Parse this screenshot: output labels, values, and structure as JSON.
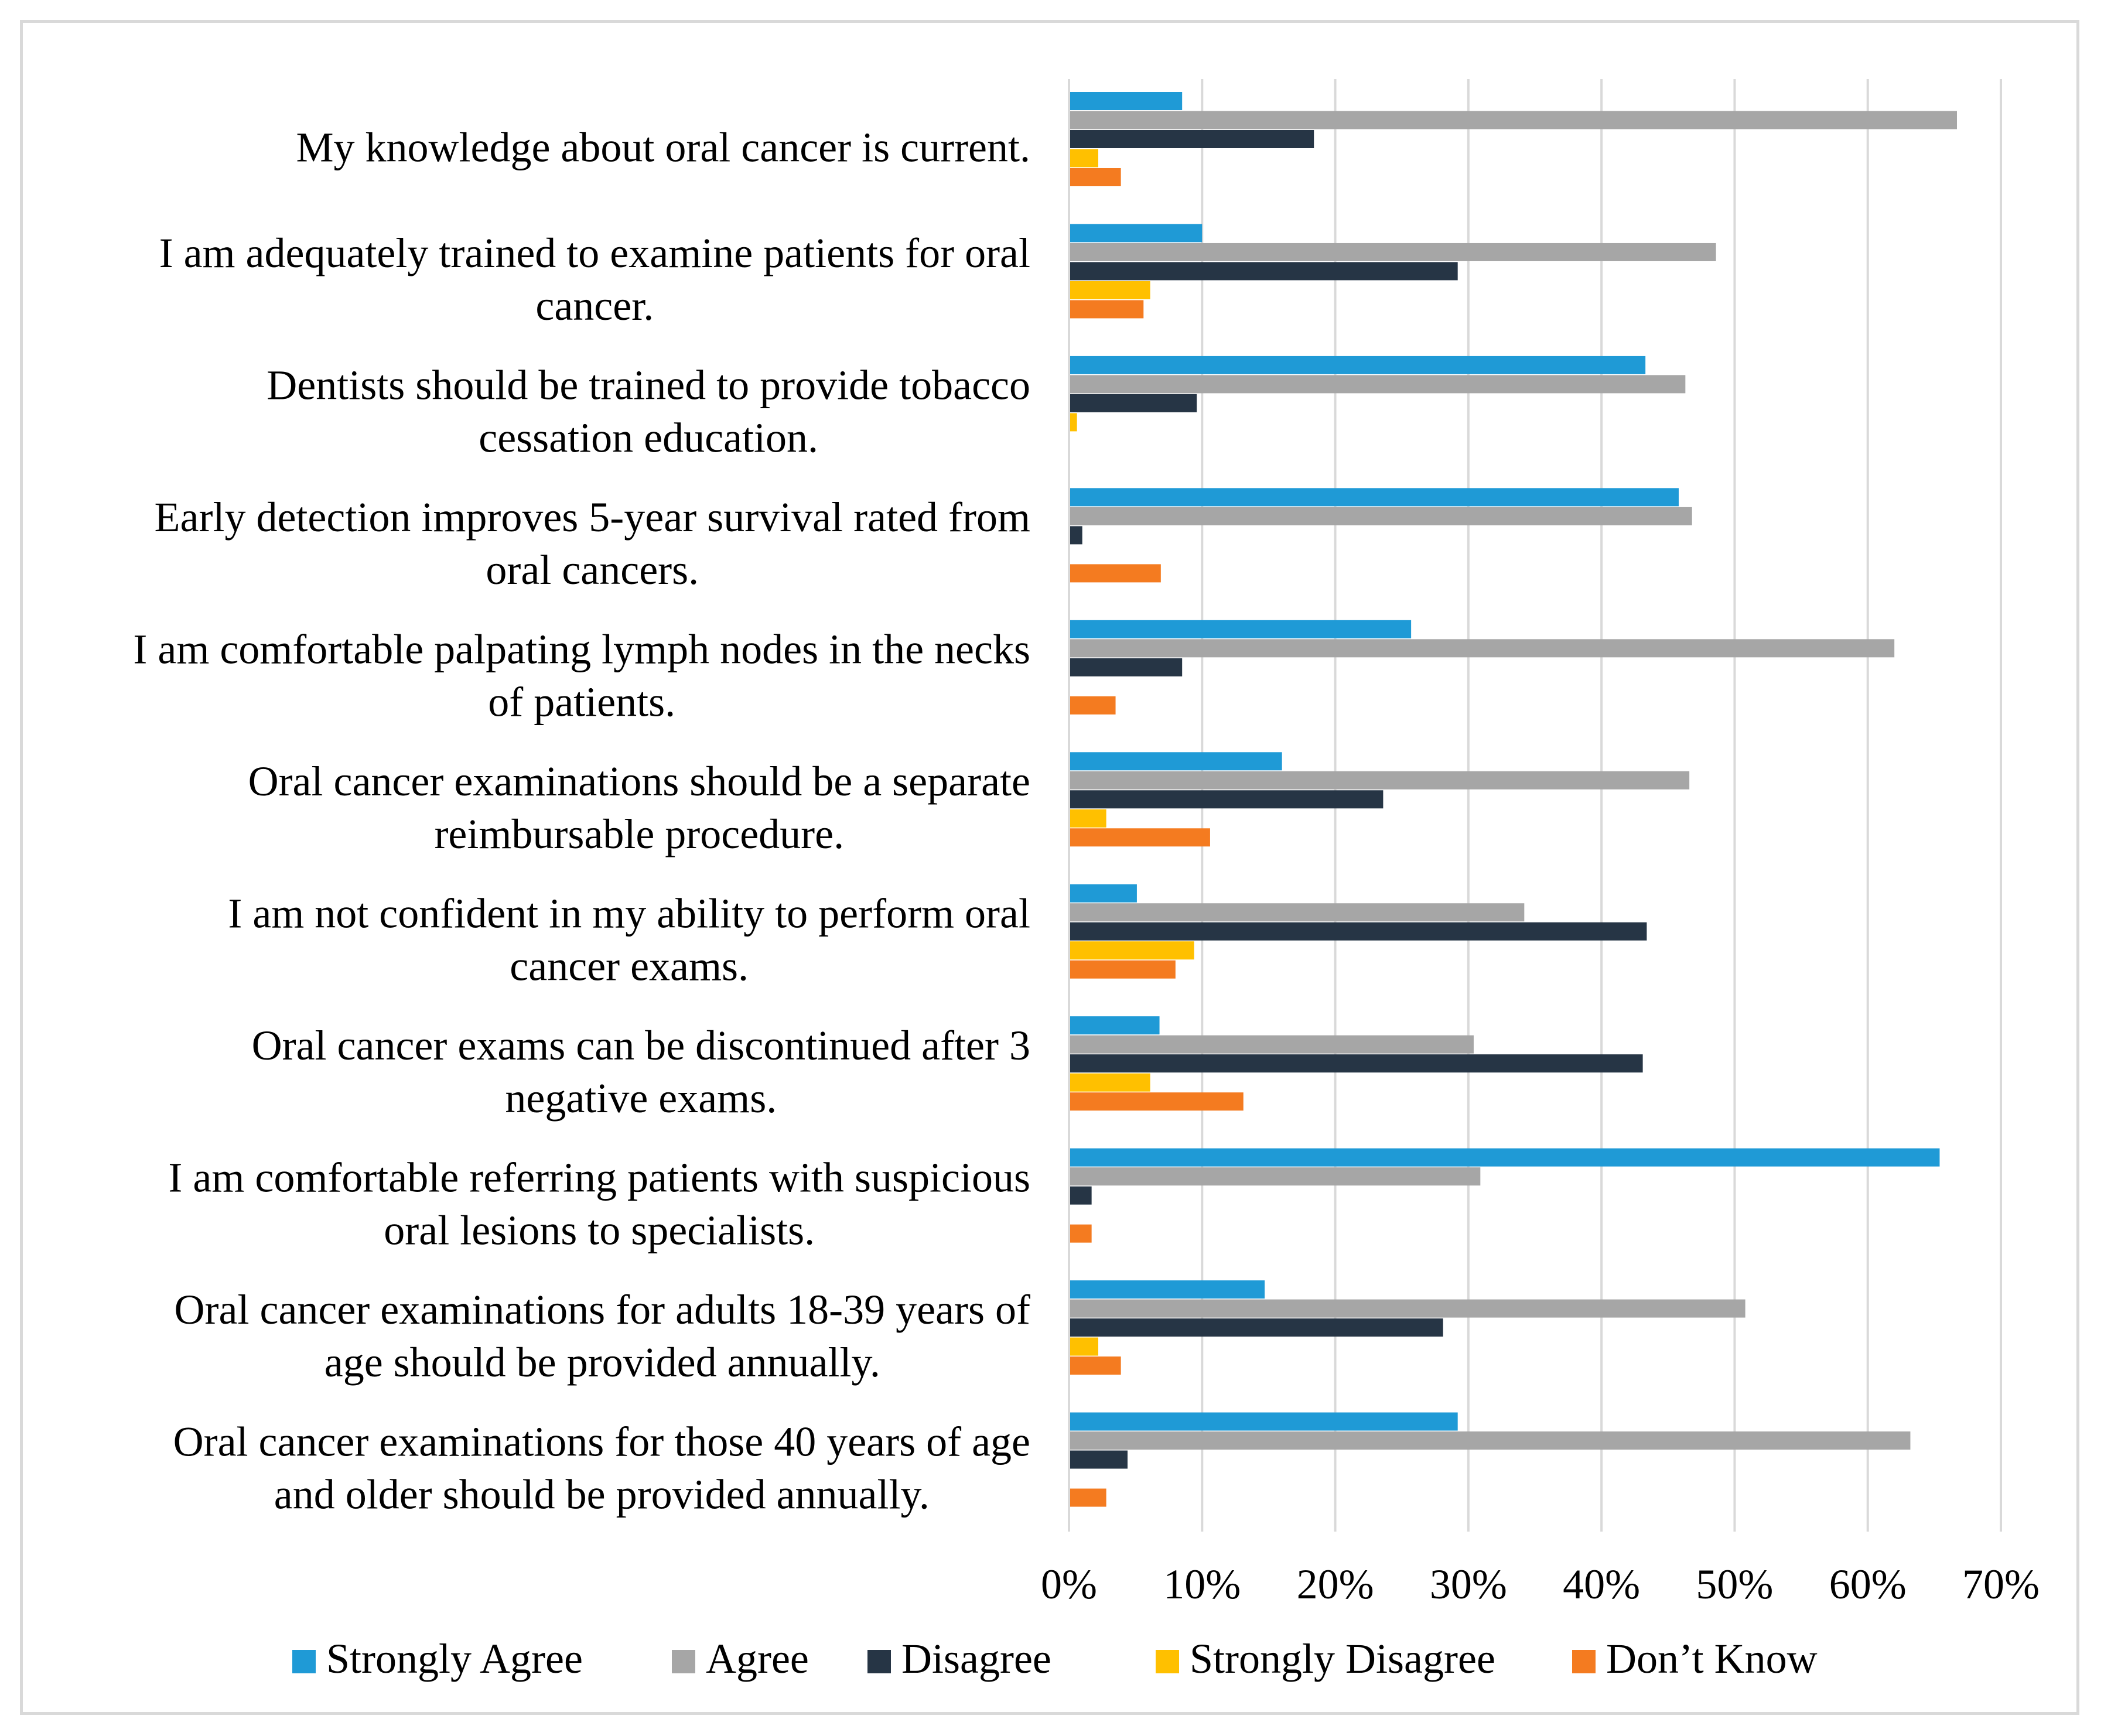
{
  "chart_data": {
    "type": "bar",
    "orientation": "horizontal",
    "title": "",
    "xlabel": "",
    "ylabel": "",
    "xlim": [
      0,
      70
    ],
    "x_ticks": [
      "0%",
      "10%",
      "20%",
      "30%",
      "40%",
      "50%",
      "60%",
      "70%"
    ],
    "grid": true,
    "legend_position": "bottom",
    "categories": [
      [
        "My knowledge about oral cancer is current."
      ],
      [
        "I am adequately trained to examine patients for oral",
        "cancer."
      ],
      [
        "Dentists should be trained to provide tobacco",
        "cessation education."
      ],
      [
        "Early detection improves 5-year survival rated from",
        "oral cancers."
      ],
      [
        "I am comfortable palpating lymph nodes in the necks",
        "of patients."
      ],
      [
        "Oral cancer examinations should be a separate",
        "reimbursable procedure."
      ],
      [
        "I am not confident in my ability to perform oral",
        "cancer exams."
      ],
      [
        "Oral cancer exams can be discontinued after 3",
        "negative exams."
      ],
      [
        "I am comfortable referring patients with suspicious",
        "oral lesions to specialists."
      ],
      [
        "Oral cancer examinations for adults 18-39 years of",
        "age should be provided annually."
      ],
      [
        "Oral cancer examinations for those 40 years of age",
        "and older should be provided annually."
      ]
    ],
    "series": [
      {
        "name": "Strongly Agree",
        "color": "#1f9ad6",
        "values": [
          8.5,
          10.0,
          43.3,
          45.8,
          25.7,
          16.0,
          5.1,
          6.8,
          65.4,
          14.7,
          29.2
        ]
      },
      {
        "name": "Agree",
        "color": "#a6a6a6",
        "values": [
          66.7,
          48.6,
          46.3,
          46.8,
          62.0,
          46.6,
          34.2,
          30.4,
          30.9,
          50.8,
          63.2
        ]
      },
      {
        "name": "Disagree",
        "color": "#263545",
        "values": [
          18.4,
          29.2,
          9.6,
          1.0,
          8.5,
          23.6,
          43.4,
          43.1,
          1.7,
          28.1,
          4.4
        ]
      },
      {
        "name": "Strongly Disagree",
        "color": "#ffc000",
        "values": [
          2.2,
          6.1,
          0.6,
          0,
          0,
          2.8,
          9.4,
          6.1,
          0,
          2.2,
          0
        ]
      },
      {
        "name": "Don’t Know",
        "color": "#f47b20",
        "values": [
          3.9,
          5.6,
          0,
          6.9,
          3.5,
          10.6,
          8.0,
          13.1,
          1.7,
          3.9,
          2.8
        ]
      }
    ]
  }
}
